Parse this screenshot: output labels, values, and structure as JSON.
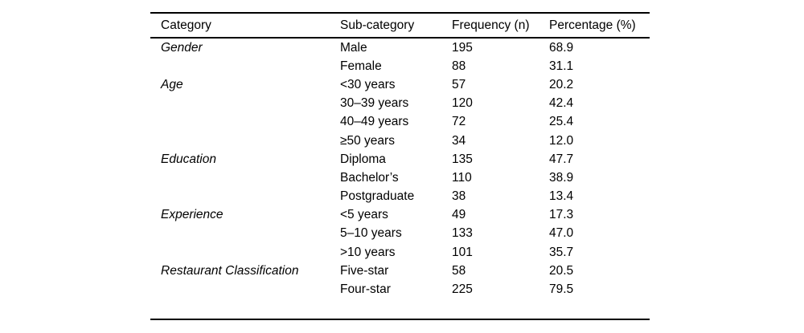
{
  "table": {
    "columns": [
      "Category",
      "Sub-category",
      "Frequency (n)",
      "Percentage (%)"
    ],
    "rows": [
      {
        "category": "Gender",
        "sub": "Male",
        "n": "195",
        "pct": "68.9"
      },
      {
        "category": "",
        "sub": "Female",
        "n": "88",
        "pct": "31.1"
      },
      {
        "category": "Age",
        "sub": "<30 years",
        "n": "57",
        "pct": "20.2"
      },
      {
        "category": "",
        "sub": "30–39 years",
        "n": "120",
        "pct": "42.4"
      },
      {
        "category": "",
        "sub": "40–49 years",
        "n": "72",
        "pct": "25.4"
      },
      {
        "category": "",
        "sub": "≥50 years",
        "n": "34",
        "pct": "12.0"
      },
      {
        "category": "Education",
        "sub": "Diploma",
        "n": "135",
        "pct": "47.7"
      },
      {
        "category": "",
        "sub": "Bachelor’s",
        "n": "110",
        "pct": "38.9"
      },
      {
        "category": "",
        "sub": "Postgraduate",
        "n": "38",
        "pct": "13.4"
      },
      {
        "category": "Experience",
        "sub": "<5 years",
        "n": "49",
        "pct": "17.3"
      },
      {
        "category": "",
        "sub": "5–10 years",
        "n": "133",
        "pct": "47.0"
      },
      {
        "category": "",
        "sub": ">10 years",
        "n": "101",
        "pct": "35.7"
      },
      {
        "category": "Restaurant Classification",
        "sub": "Five-star",
        "n": "58",
        "pct": "20.5"
      },
      {
        "category": "",
        "sub": "Four-star",
        "n": "225",
        "pct": "79.5"
      }
    ]
  },
  "colors": {
    "text": "#000000",
    "rule": "#000000",
    "background": "#ffffff"
  }
}
